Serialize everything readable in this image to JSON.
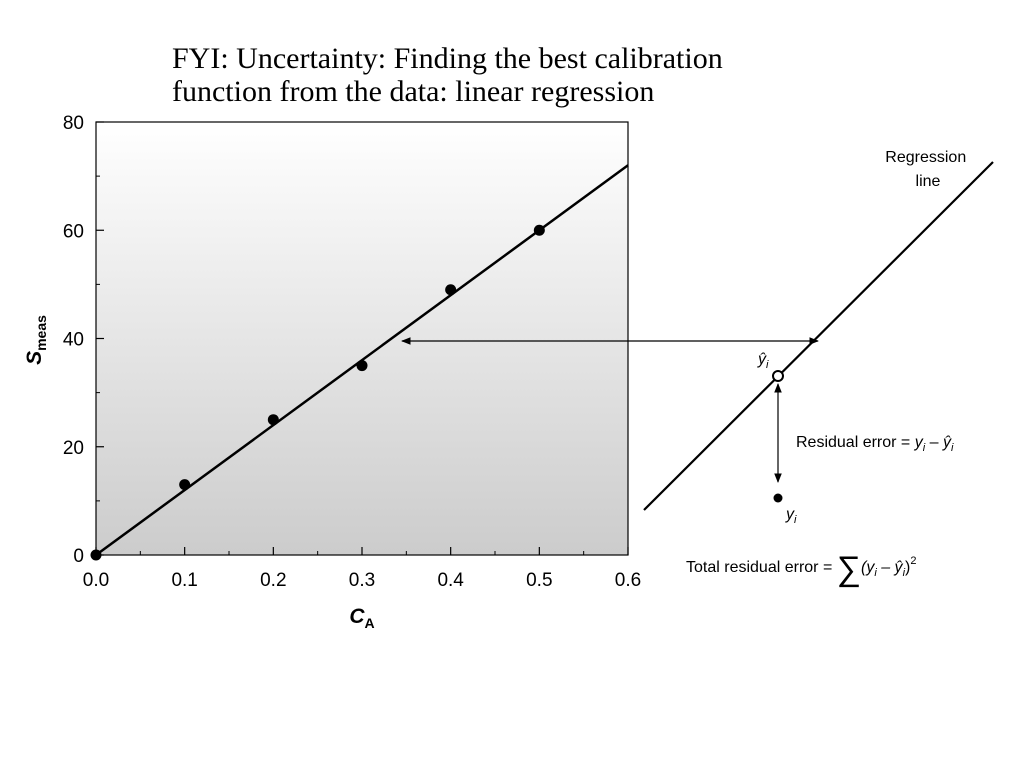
{
  "title_line1": "FYI: Uncertainty: Finding the best calibration",
  "title_line2": "function from the data: linear regression",
  "chart_data": {
    "type": "scatter",
    "x": [
      0.0,
      0.1,
      0.2,
      0.3,
      0.4,
      0.5
    ],
    "y": [
      0,
      13,
      25,
      35,
      49,
      60
    ],
    "fit_line": {
      "x": [
        0.0,
        0.6
      ],
      "y": [
        0,
        72
      ]
    },
    "xlim": [
      0.0,
      0.6
    ],
    "ylim": [
      0,
      80
    ],
    "x_ticks": [
      "0.0",
      "0.1",
      "0.2",
      "0.3",
      "0.4",
      "0.5",
      "0.6"
    ],
    "y_ticks": [
      "0",
      "20",
      "40",
      "60",
      "80"
    ],
    "xlabel_main": "C",
    "xlabel_sub": "A",
    "ylabel_main": "S",
    "ylabel_sub": "meas",
    "background_gradient": [
      "#ffffff",
      "#cccccc"
    ]
  },
  "inset": {
    "regression_label_1": "Regression",
    "regression_label_2": "line",
    "yhat_label": "ŷ",
    "yhat_sub": "i",
    "y_label": "y",
    "y_sub": "i",
    "residual_text": "Residual error = ",
    "residual_formula": "y",
    "residual_sub1": "i",
    "residual_minus": " – ",
    "residual_yhat": "ŷ",
    "residual_sub2": "i",
    "total_text": "Total residual error = ",
    "sigma": "∑",
    "total_open": "(y",
    "total_sub1": "i",
    "total_minus": " – ŷ",
    "total_sub2": "i",
    "total_close": ")",
    "total_exp": "2"
  }
}
